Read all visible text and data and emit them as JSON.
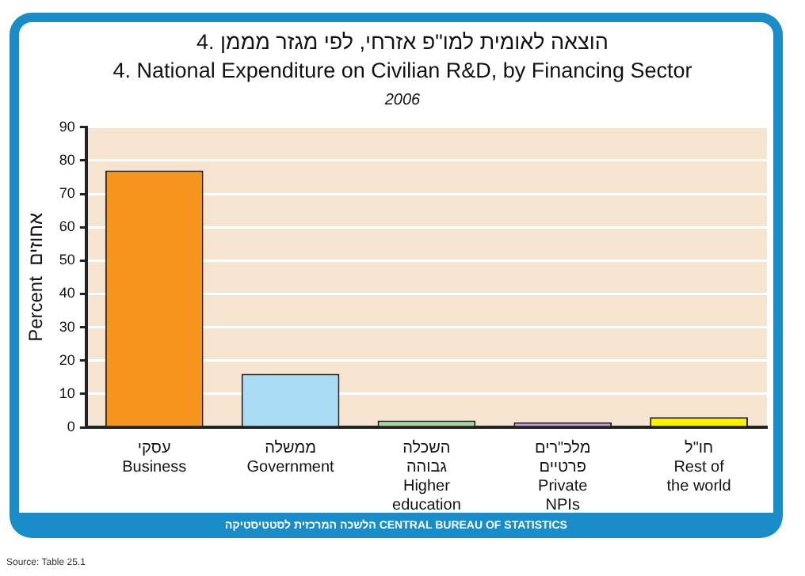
{
  "chart_data": {
    "type": "bar",
    "title": "4. הוצאה לאומית למו\"פ אזרחי, לפי מגזר מממן\n4. National Expenditure on Civilian R&D, by Financing Sector",
    "subtitle": "2006",
    "ylabel": "Percent  אחוזים",
    "categories": [
      "עסקי\nBusiness",
      "ממשלה\nGovernment",
      "השכלה\nגבוהה\nHigher\neducation",
      "מלכ\"רים\nפרטיים\nPrivate\nNPIs",
      "חו\"ל\nRest of\nthe world"
    ],
    "values": [
      77,
      16,
      2,
      1.5,
      3
    ],
    "colors": [
      "#f7941d",
      "#aadcf5",
      "#a5d99b",
      "#c9a0d6",
      "#fff200"
    ],
    "ylim": [
      0,
      90
    ],
    "yticks": [
      0,
      10,
      20,
      30,
      40,
      50,
      60,
      70,
      80,
      90
    ],
    "grid": "y",
    "legend": false,
    "annotations": [
      "הלשכה המרכזית לסטטיסטיקה  CENTRAL BUREAU OF STATISTICS",
      "Source: Table 25.1"
    ]
  }
}
